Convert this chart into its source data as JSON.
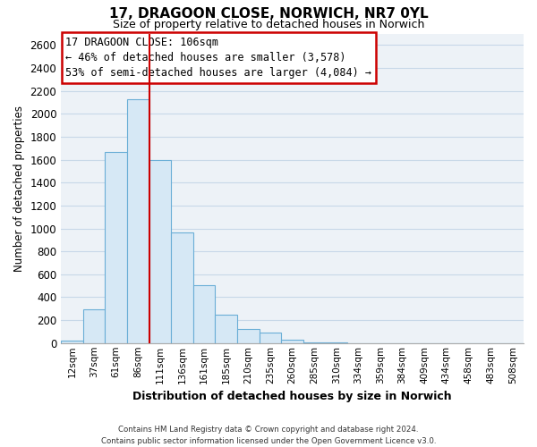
{
  "title": "17, DRAGOON CLOSE, NORWICH, NR7 0YL",
  "subtitle": "Size of property relative to detached houses in Norwich",
  "xlabel": "Distribution of detached houses by size in Norwich",
  "ylabel": "Number of detached properties",
  "bar_color": "#d6e8f5",
  "bar_edge_color": "#6aaed6",
  "grid_color": "#c8d8e8",
  "bin_labels": [
    "12sqm",
    "37sqm",
    "61sqm",
    "86sqm",
    "111sqm",
    "136sqm",
    "161sqm",
    "185sqm",
    "210sqm",
    "235sqm",
    "260sqm",
    "285sqm",
    "310sqm",
    "334sqm",
    "359sqm",
    "384sqm",
    "409sqm",
    "434sqm",
    "458sqm",
    "483sqm",
    "508sqm"
  ],
  "bar_values": [
    20,
    295,
    1670,
    2130,
    1600,
    965,
    505,
    250,
    120,
    95,
    30,
    5,
    3,
    2,
    2,
    1,
    1,
    1,
    1,
    1,
    1
  ],
  "vline_x": 3.5,
  "vline_color": "#cc0000",
  "ylim": [
    0,
    2700
  ],
  "yticks": [
    0,
    200,
    400,
    600,
    800,
    1000,
    1200,
    1400,
    1600,
    1800,
    2000,
    2200,
    2400,
    2600
  ],
  "annotation_box_text": "17 DRAGOON CLOSE: 106sqm\n← 46% of detached houses are smaller (3,578)\n53% of semi-detached houses are larger (4,084) →",
  "footer_text": "Contains HM Land Registry data © Crown copyright and database right 2024.\nContains public sector information licensed under the Open Government Licence v3.0.",
  "background_color": "#edf2f7"
}
